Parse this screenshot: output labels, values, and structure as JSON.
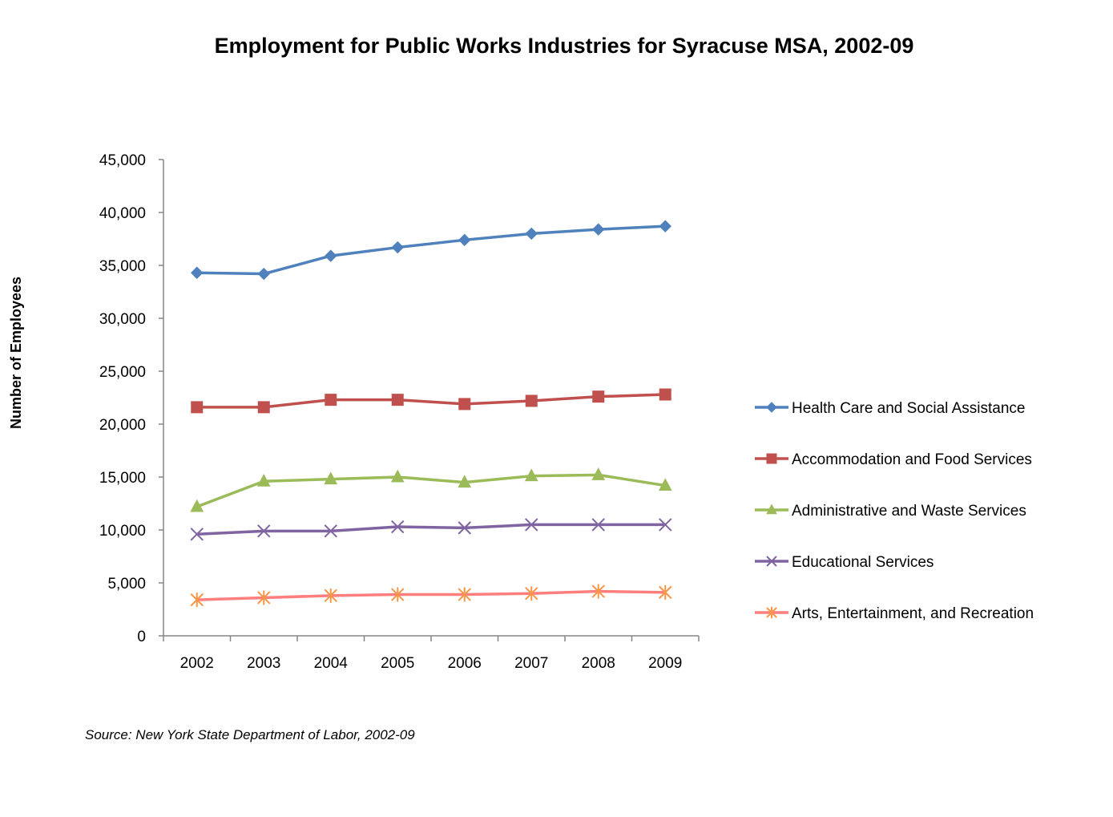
{
  "chart_data": {
    "type": "line",
    "title": "Employment for Public Works Industries for Syracuse MSA, 2002-09",
    "ylabel": "Number of Employees",
    "xlabel": "",
    "categories": [
      "2002",
      "2003",
      "2004",
      "2005",
      "2006",
      "2007",
      "2008",
      "2009"
    ],
    "ylim": [
      0,
      45000
    ],
    "yticks": [
      0,
      5000,
      10000,
      15000,
      20000,
      25000,
      30000,
      35000,
      40000,
      45000
    ],
    "ytick_labels": [
      "0",
      "5,000",
      "10,000",
      "15,000",
      "20,000",
      "25,000",
      "30,000",
      "35,000",
      "40,000",
      "45,000"
    ],
    "grid": false,
    "legend_position": "right",
    "series": [
      {
        "name": "Health Care and Social Assistance",
        "values": [
          34300,
          34200,
          35900,
          36700,
          37400,
          38000,
          38400,
          38700
        ],
        "color": "#4F81BD",
        "marker": "diamond"
      },
      {
        "name": "Accommodation and Food Services",
        "values": [
          21600,
          21600,
          22300,
          22300,
          21900,
          22200,
          22600,
          22800
        ],
        "color": "#C0504D",
        "marker": "square"
      },
      {
        "name": "Administrative and Waste Services",
        "values": [
          12200,
          14600,
          14800,
          15000,
          14500,
          15100,
          15200,
          14200
        ],
        "color": "#9BBB59",
        "marker": "triangle"
      },
      {
        "name": "Educational Services",
        "values": [
          9600,
          9900,
          9900,
          10300,
          10200,
          10500,
          10500,
          10500
        ],
        "color": "#8064A2",
        "marker": "x"
      },
      {
        "name": "Arts, Entertainment, and Recreation",
        "values": [
          3400,
          3600,
          3800,
          3900,
          3900,
          4000,
          4200,
          4100
        ],
        "color": "#F79646",
        "line_color": "#FF7F7F",
        "marker": "asterisk"
      }
    ],
    "source": "Source: New York State Department of Labor, 2002-09"
  }
}
